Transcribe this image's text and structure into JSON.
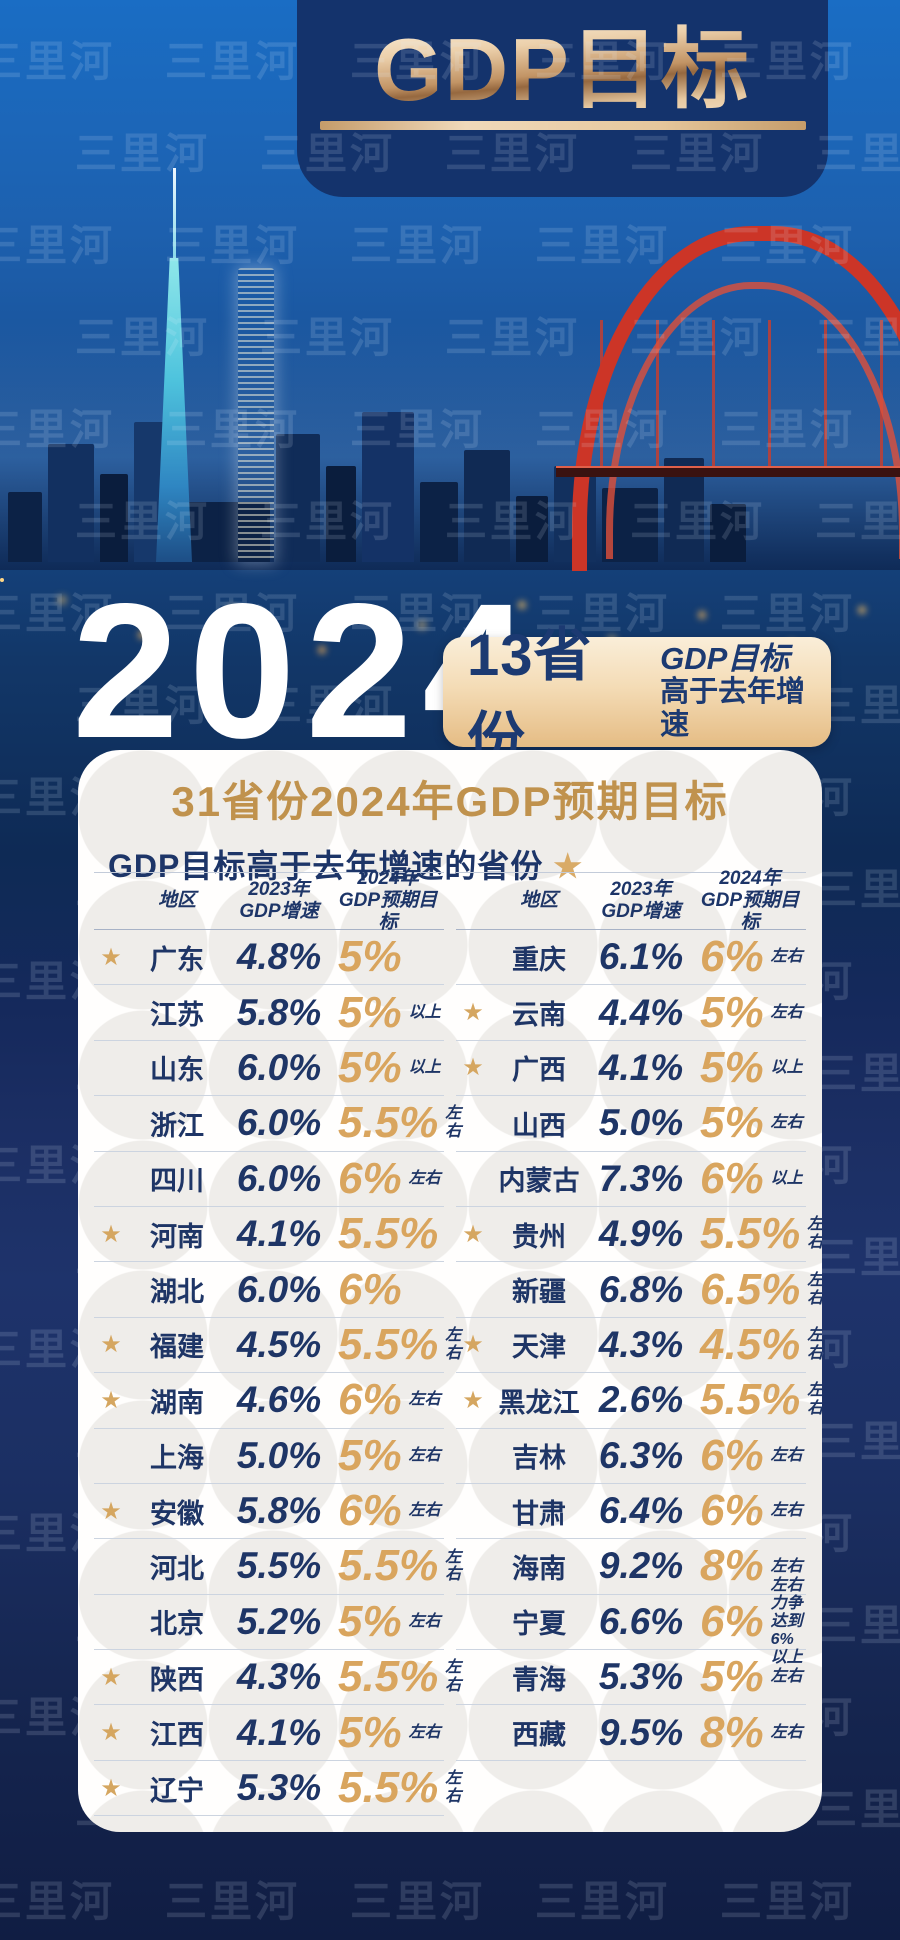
{
  "watermark": "三里河",
  "banner": {
    "title": "GDP目标"
  },
  "hero": {
    "year": "2024",
    "badge_count": "13省份",
    "badge_line1": "GDP目标",
    "badge_line2": "高于去年增速"
  },
  "card": {
    "title": "31省份2024年GDP预期目标",
    "subtitle": "GDP目标高于去年增速的省份",
    "star_icon": "★",
    "header": {
      "region": "地区",
      "y2023": "2023年\nGDP增速",
      "y2024": "2024年\nGDP预期目标"
    },
    "columns": [
      {
        "rows": [
          {
            "star": true,
            "region": "广东",
            "growth_2023": "4.8%",
            "target_2024": "5%",
            "note": ""
          },
          {
            "star": false,
            "region": "江苏",
            "growth_2023": "5.8%",
            "target_2024": "5%",
            "note": "以上"
          },
          {
            "star": false,
            "region": "山东",
            "growth_2023": "6.0%",
            "target_2024": "5%",
            "note": "以上"
          },
          {
            "star": false,
            "region": "浙江",
            "growth_2023": "6.0%",
            "target_2024": "5.5%",
            "note": "左右"
          },
          {
            "star": false,
            "region": "四川",
            "growth_2023": "6.0%",
            "target_2024": "6%",
            "note": "左右"
          },
          {
            "star": true,
            "region": "河南",
            "growth_2023": "4.1%",
            "target_2024": "5.5%",
            "note": ""
          },
          {
            "star": false,
            "region": "湖北",
            "growth_2023": "6.0%",
            "target_2024": "6%",
            "note": ""
          },
          {
            "star": true,
            "region": "福建",
            "growth_2023": "4.5%",
            "target_2024": "5.5%",
            "note": "左右"
          },
          {
            "star": true,
            "region": "湖南",
            "growth_2023": "4.6%",
            "target_2024": "6%",
            "note": "左右"
          },
          {
            "star": false,
            "region": "上海",
            "growth_2023": "5.0%",
            "target_2024": "5%",
            "note": "左右"
          },
          {
            "star": true,
            "region": "安徽",
            "growth_2023": "5.8%",
            "target_2024": "6%",
            "note": "左右"
          },
          {
            "star": false,
            "region": "河北",
            "growth_2023": "5.5%",
            "target_2024": "5.5%",
            "note": "左右"
          },
          {
            "star": false,
            "region": "北京",
            "growth_2023": "5.2%",
            "target_2024": "5%",
            "note": "左右"
          },
          {
            "star": true,
            "region": "陕西",
            "growth_2023": "4.3%",
            "target_2024": "5.5%",
            "note": "左右"
          },
          {
            "star": true,
            "region": "江西",
            "growth_2023": "4.1%",
            "target_2024": "5%",
            "note": "左右"
          },
          {
            "star": true,
            "region": "辽宁",
            "growth_2023": "5.3%",
            "target_2024": "5.5%",
            "note": "左右"
          }
        ]
      },
      {
        "rows": [
          {
            "star": false,
            "region": "重庆",
            "growth_2023": "6.1%",
            "target_2024": "6%",
            "note": "左右"
          },
          {
            "star": true,
            "region": "云南",
            "growth_2023": "4.4%",
            "target_2024": "5%",
            "note": "左右"
          },
          {
            "star": true,
            "region": "广西",
            "growth_2023": "4.1%",
            "target_2024": "5%",
            "note": "以上"
          },
          {
            "star": false,
            "region": "山西",
            "growth_2023": "5.0%",
            "target_2024": "5%",
            "note": "左右"
          },
          {
            "star": false,
            "region": "内蒙古",
            "growth_2023": "7.3%",
            "target_2024": "6%",
            "note": "以上"
          },
          {
            "star": true,
            "region": "贵州",
            "growth_2023": "4.9%",
            "target_2024": "5.5%",
            "note": "左右"
          },
          {
            "star": false,
            "region": "新疆",
            "growth_2023": "6.8%",
            "target_2024": "6.5%",
            "note": "左右"
          },
          {
            "star": true,
            "region": "天津",
            "growth_2023": "4.3%",
            "target_2024": "4.5%",
            "note": "左右"
          },
          {
            "star": true,
            "region": "黑龙江",
            "growth_2023": "2.6%",
            "target_2024": "5.5%",
            "note": "左右"
          },
          {
            "star": false,
            "region": "吉林",
            "growth_2023": "6.3%",
            "target_2024": "6%",
            "note": "左右"
          },
          {
            "star": false,
            "region": "甘肃",
            "growth_2023": "6.4%",
            "target_2024": "6%",
            "note": "左右"
          },
          {
            "star": false,
            "region": "海南",
            "growth_2023": "9.2%",
            "target_2024": "8%",
            "note": "左右"
          },
          {
            "star": false,
            "region": "宁夏",
            "growth_2023": "6.6%",
            "target_2024": "6%",
            "note": "左右\n力争达到\n6% 以上"
          },
          {
            "star": false,
            "region": "青海",
            "growth_2023": "5.3%",
            "target_2024": "5%",
            "note": "左右"
          },
          {
            "star": false,
            "region": "西藏",
            "growth_2023": "9.5%",
            "target_2024": "8%",
            "note": "左右"
          }
        ]
      }
    ]
  },
  "colors": {
    "navy_text": "#1e3566",
    "gold_number": "#d9a55e",
    "card_title_gold": "#c0924d",
    "badge_navy": "#1c3a72",
    "banner_navy": "#14336c",
    "sky_blue": "#1a6dc4",
    "bridge_red": "#cc3527",
    "star_gold": "#d5a660"
  },
  "chart_data": {
    "type": "table",
    "title": "31省份2024年GDP预期目标",
    "subtitle": "GDP目标高于去年增速的省份(★标记, 共13省份)",
    "columns": [
      "地区",
      "2023年GDP增速",
      "2024年GDP预期目标"
    ],
    "rows": [
      [
        "广东",
        "4.8%",
        "5%"
      ],
      [
        "江苏",
        "5.8%",
        "5% 以上"
      ],
      [
        "山东",
        "6.0%",
        "5% 以上"
      ],
      [
        "浙江",
        "6.0%",
        "5.5% 左右"
      ],
      [
        "四川",
        "6.0%",
        "6% 左右"
      ],
      [
        "河南",
        "4.1%",
        "5.5%"
      ],
      [
        "湖北",
        "6.0%",
        "6%"
      ],
      [
        "福建",
        "4.5%",
        "5.5% 左右"
      ],
      [
        "湖南",
        "4.6%",
        "6% 左右"
      ],
      [
        "上海",
        "5.0%",
        "5% 左右"
      ],
      [
        "安徽",
        "5.8%",
        "6% 左右"
      ],
      [
        "河北",
        "5.5%",
        "5.5% 左右"
      ],
      [
        "北京",
        "5.2%",
        "5% 左右"
      ],
      [
        "陕西",
        "4.3%",
        "5.5% 左右"
      ],
      [
        "江西",
        "4.1%",
        "5% 左右"
      ],
      [
        "辽宁",
        "5.3%",
        "5.5% 左右"
      ],
      [
        "重庆",
        "6.1%",
        "6% 左右"
      ],
      [
        "云南",
        "4.4%",
        "5% 左右"
      ],
      [
        "广西",
        "4.1%",
        "5% 以上"
      ],
      [
        "山西",
        "5.0%",
        "5% 左右"
      ],
      [
        "内蒙古",
        "7.3%",
        "6% 以上"
      ],
      [
        "贵州",
        "4.9%",
        "5.5% 左右"
      ],
      [
        "新疆",
        "6.8%",
        "6.5% 左右"
      ],
      [
        "天津",
        "4.3%",
        "4.5% 左右"
      ],
      [
        "黑龙江",
        "2.6%",
        "5.5% 左右"
      ],
      [
        "吉林",
        "6.3%",
        "6% 左右"
      ],
      [
        "甘肃",
        "6.4%",
        "6% 左右"
      ],
      [
        "海南",
        "9.2%",
        "8% 左右"
      ],
      [
        "宁夏",
        "6.6%",
        "6% 左右 力争达到 6% 以上"
      ],
      [
        "青海",
        "5.3%",
        "5% 左右"
      ],
      [
        "西藏",
        "9.5%",
        "8% 左右"
      ]
    ],
    "starred_regions": [
      "广东",
      "河南",
      "福建",
      "湖南",
      "安徽",
      "陕西",
      "江西",
      "辽宁",
      "云南",
      "广西",
      "贵州",
      "天津",
      "黑龙江"
    ]
  }
}
